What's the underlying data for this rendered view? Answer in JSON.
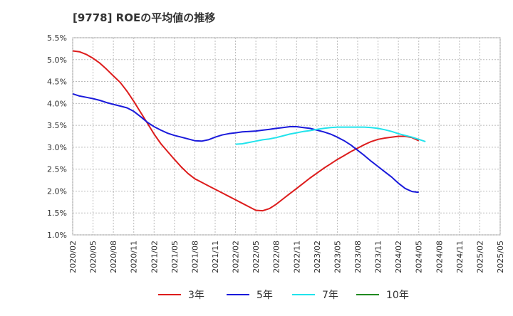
{
  "chart_data": {
    "type": "line",
    "title": "[9778]  ROEの平均値の推移",
    "xlabel": "",
    "ylabel": "",
    "ylim": [
      1.0,
      5.5
    ],
    "yticks": [
      1.0,
      1.5,
      2.0,
      2.5,
      3.0,
      3.5,
      4.0,
      4.5,
      5.0,
      5.5
    ],
    "ytick_labels": [
      "1.0%",
      "1.5%",
      "2.0%",
      "2.5%",
      "3.0%",
      "3.5%",
      "4.0%",
      "4.5%",
      "5.0%",
      "5.5%"
    ],
    "x_ticks": [
      "2020/02",
      "2020/05",
      "2020/08",
      "2020/11",
      "2021/02",
      "2021/05",
      "2021/08",
      "2021/11",
      "2022/02",
      "2022/05",
      "2022/08",
      "2022/11",
      "2023/02",
      "2023/05",
      "2023/08",
      "2023/11",
      "2024/02",
      "2024/05",
      "2024/08",
      "2024/11",
      "2025/02",
      "2025/05"
    ],
    "grid": true,
    "legend_position": "bottom",
    "series": [
      {
        "name": "3年",
        "color": "#dd1c1c",
        "points": [
          [
            0,
            5.2
          ],
          [
            1,
            5.18
          ],
          [
            2,
            5.12
          ],
          [
            3,
            5.03
          ],
          [
            4,
            4.92
          ],
          [
            5,
            4.78
          ],
          [
            6,
            4.63
          ],
          [
            7,
            4.48
          ],
          [
            8,
            4.28
          ],
          [
            9,
            4.05
          ],
          [
            10,
            3.8
          ],
          [
            11,
            3.55
          ],
          [
            12,
            3.3
          ],
          [
            13,
            3.08
          ],
          [
            14,
            2.9
          ],
          [
            15,
            2.72
          ],
          [
            16,
            2.55
          ],
          [
            17,
            2.4
          ],
          [
            18,
            2.28
          ],
          [
            19,
            2.2
          ],
          [
            20,
            2.12
          ],
          [
            21,
            2.04
          ],
          [
            22,
            1.96
          ],
          [
            23,
            1.88
          ],
          [
            24,
            1.8
          ],
          [
            25,
            1.72
          ],
          [
            26,
            1.64
          ],
          [
            27,
            1.56
          ],
          [
            28,
            1.55
          ],
          [
            29,
            1.6
          ],
          [
            30,
            1.7
          ],
          [
            31,
            1.82
          ],
          [
            32,
            1.94
          ],
          [
            33,
            2.06
          ],
          [
            34,
            2.18
          ],
          [
            35,
            2.3
          ],
          [
            36,
            2.41
          ],
          [
            37,
            2.52
          ],
          [
            38,
            2.62
          ],
          [
            39,
            2.72
          ],
          [
            40,
            2.81
          ],
          [
            41,
            2.9
          ],
          [
            42,
            2.98
          ],
          [
            43,
            3.06
          ],
          [
            44,
            3.13
          ],
          [
            45,
            3.18
          ],
          [
            46,
            3.21
          ],
          [
            47,
            3.23
          ],
          [
            48,
            3.25
          ],
          [
            49,
            3.25
          ],
          [
            50,
            3.22
          ],
          [
            51,
            3.15
          ]
        ]
      },
      {
        "name": "5年",
        "color": "#1a1adb",
        "points": [
          [
            0,
            4.22
          ],
          [
            1,
            4.17
          ],
          [
            2,
            4.14
          ],
          [
            3,
            4.11
          ],
          [
            4,
            4.07
          ],
          [
            5,
            4.02
          ],
          [
            6,
            3.98
          ],
          [
            7,
            3.94
          ],
          [
            8,
            3.9
          ],
          [
            9,
            3.82
          ],
          [
            10,
            3.7
          ],
          [
            11,
            3.57
          ],
          [
            12,
            3.47
          ],
          [
            13,
            3.39
          ],
          [
            14,
            3.32
          ],
          [
            15,
            3.27
          ],
          [
            16,
            3.23
          ],
          [
            17,
            3.19
          ],
          [
            18,
            3.15
          ],
          [
            19,
            3.14
          ],
          [
            20,
            3.17
          ],
          [
            21,
            3.23
          ],
          [
            22,
            3.28
          ],
          [
            23,
            3.31
          ],
          [
            24,
            3.33
          ],
          [
            25,
            3.35
          ],
          [
            26,
            3.36
          ],
          [
            27,
            3.37
          ],
          [
            28,
            3.39
          ],
          [
            29,
            3.41
          ],
          [
            30,
            3.43
          ],
          [
            31,
            3.45
          ],
          [
            32,
            3.47
          ],
          [
            33,
            3.47
          ],
          [
            34,
            3.45
          ],
          [
            35,
            3.43
          ],
          [
            36,
            3.39
          ],
          [
            37,
            3.35
          ],
          [
            38,
            3.3
          ],
          [
            39,
            3.23
          ],
          [
            40,
            3.15
          ],
          [
            41,
            3.05
          ],
          [
            42,
            2.93
          ],
          [
            43,
            2.81
          ],
          [
            44,
            2.68
          ],
          [
            45,
            2.56
          ],
          [
            46,
            2.44
          ],
          [
            47,
            2.32
          ],
          [
            48,
            2.18
          ],
          [
            49,
            2.06
          ],
          [
            50,
            1.99
          ],
          [
            51,
            1.97
          ]
        ]
      },
      {
        "name": "7年",
        "color": "#21e3ec",
        "points": [
          [
            24,
            3.07
          ],
          [
            25,
            3.08
          ],
          [
            26,
            3.11
          ],
          [
            27,
            3.14
          ],
          [
            28,
            3.17
          ],
          [
            29,
            3.19
          ],
          [
            30,
            3.22
          ],
          [
            31,
            3.26
          ],
          [
            32,
            3.3
          ],
          [
            33,
            3.33
          ],
          [
            34,
            3.36
          ],
          [
            35,
            3.38
          ],
          [
            36,
            3.41
          ],
          [
            37,
            3.43
          ],
          [
            38,
            3.45
          ],
          [
            39,
            3.46
          ],
          [
            40,
            3.46
          ],
          [
            41,
            3.46
          ],
          [
            42,
            3.46
          ],
          [
            43,
            3.46
          ],
          [
            44,
            3.45
          ],
          [
            45,
            3.43
          ],
          [
            46,
            3.4
          ],
          [
            47,
            3.36
          ],
          [
            48,
            3.31
          ],
          [
            49,
            3.27
          ],
          [
            50,
            3.23
          ],
          [
            51,
            3.18
          ],
          [
            52,
            3.13
          ]
        ]
      },
      {
        "name": "10年",
        "color": "#208a20",
        "points": []
      }
    ]
  }
}
